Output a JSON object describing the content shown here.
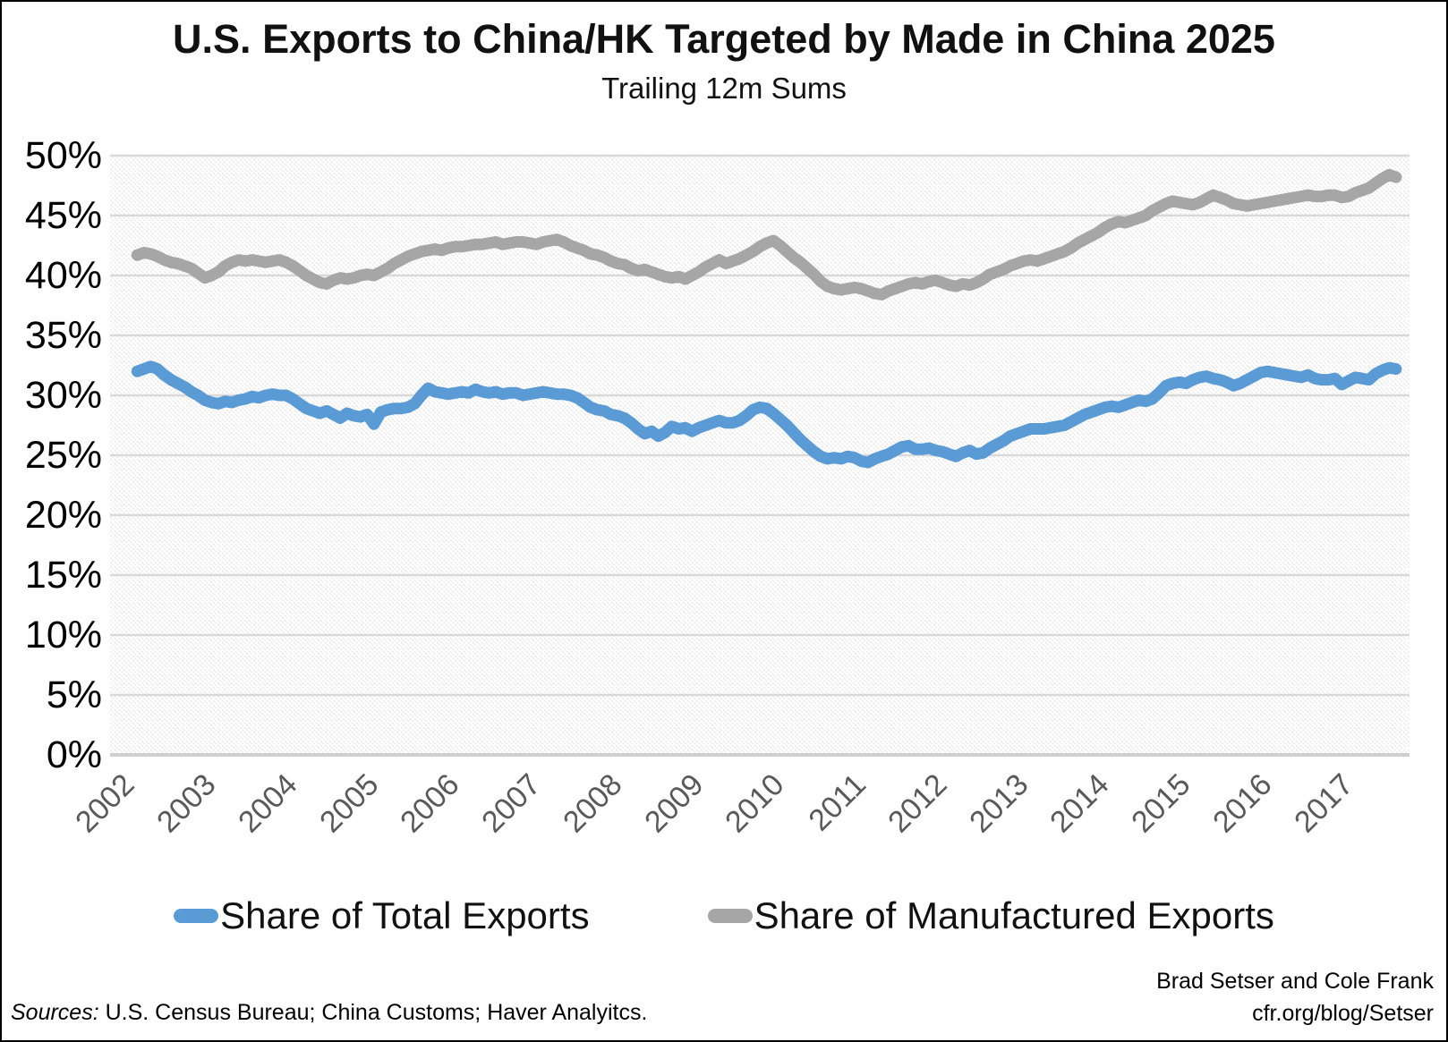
{
  "title": "U.S. Exports to China/HK Targeted by Made in China 2025",
  "subtitle": "Trailing 12m Sums",
  "legend": {
    "items": [
      {
        "label": "Share of Total Exports",
        "color": "#5b9bd5"
      },
      {
        "label": "Share of Manufactured Exports",
        "color": "#a6a6a6"
      }
    ]
  },
  "footer": {
    "sources_label": "Sources:",
    "sources_text": " U.S. Census Bureau; China Customs; Haver Analyitcs.",
    "credit_line1": "Brad Setser and Cole Frank",
    "credit_line2": "cfr.org/blog/Setser"
  },
  "chart_data": {
    "type": "line",
    "title": "U.S. Exports to China/HK Targeted by Made in China 2025",
    "subtitle": "Trailing 12m Sums",
    "grid": "horizontal",
    "legend_position": "bottom",
    "ylim": [
      0,
      50
    ],
    "y_tick_step": 5,
    "y_tick_labels": [
      "0%",
      "5%",
      "10%",
      "15%",
      "20%",
      "25%",
      "30%",
      "35%",
      "40%",
      "45%",
      "50%"
    ],
    "x_axis": {
      "start_year": 2002,
      "end_year_exclusive": 2018,
      "unit": "month"
    },
    "x_tick_labels": [
      "2002",
      "2003",
      "2004",
      "2005",
      "2006",
      "2007",
      "2008",
      "2009",
      "2010",
      "2011",
      "2012",
      "2013",
      "2014",
      "2015",
      "2016",
      "2017"
    ],
    "start_month": "2002-05",
    "end_month": "2017-11",
    "series": [
      {
        "name": "Share of Total Exports",
        "color": "#5b9bd5",
        "values": [
          32.0,
          32.2,
          32.4,
          32.2,
          31.7,
          31.3,
          31.0,
          30.7,
          30.3,
          30.0,
          29.6,
          29.4,
          29.3,
          29.5,
          29.4,
          29.6,
          29.7,
          29.9,
          29.8,
          30.0,
          30.1,
          30.0,
          30.0,
          29.7,
          29.3,
          28.9,
          28.7,
          28.5,
          28.7,
          28.4,
          28.1,
          28.5,
          28.3,
          28.2,
          28.4,
          27.6,
          28.6,
          28.8,
          28.9,
          28.9,
          29.0,
          29.3,
          30.0,
          30.6,
          30.3,
          30.2,
          30.1,
          30.2,
          30.3,
          30.2,
          30.5,
          30.3,
          30.2,
          30.3,
          30.1,
          30.2,
          30.2,
          30.0,
          30.1,
          30.2,
          30.3,
          30.2,
          30.1,
          30.1,
          30.0,
          29.8,
          29.4,
          29.0,
          28.8,
          28.7,
          28.4,
          28.3,
          28.1,
          27.7,
          27.2,
          26.8,
          27.0,
          26.6,
          26.9,
          27.4,
          27.2,
          27.3,
          27.0,
          27.3,
          27.5,
          27.7,
          27.9,
          27.7,
          27.7,
          27.9,
          28.3,
          28.8,
          29.0,
          28.9,
          28.5,
          28.0,
          27.5,
          26.9,
          26.3,
          25.8,
          25.3,
          24.9,
          24.7,
          24.8,
          24.7,
          24.9,
          24.8,
          24.5,
          24.4,
          24.7,
          24.9,
          25.1,
          25.4,
          25.7,
          25.8,
          25.5,
          25.5,
          25.6,
          25.4,
          25.3,
          25.1,
          24.9,
          25.2,
          25.4,
          25.1,
          25.2,
          25.6,
          25.9,
          26.2,
          26.6,
          26.8,
          27.0,
          27.2,
          27.2,
          27.2,
          27.3,
          27.4,
          27.5,
          27.8,
          28.1,
          28.4,
          28.6,
          28.8,
          29.0,
          29.1,
          29.0,
          29.2,
          29.4,
          29.6,
          29.5,
          29.7,
          30.2,
          30.8,
          31.0,
          31.1,
          31.0,
          31.3,
          31.5,
          31.6,
          31.4,
          31.3,
          31.1,
          30.8,
          31.0,
          31.3,
          31.6,
          31.9,
          32.0,
          31.9,
          31.8,
          31.7,
          31.6,
          31.5,
          31.7,
          31.4,
          31.3,
          31.3,
          31.4,
          30.9,
          31.2,
          31.5,
          31.4,
          31.3,
          31.8,
          32.1,
          32.3,
          32.2
        ]
      },
      {
        "name": "Share of Manufactured Exports",
        "color": "#a6a6a6",
        "values": [
          41.7,
          41.9,
          41.8,
          41.6,
          41.3,
          41.1,
          41.0,
          40.8,
          40.6,
          40.2,
          39.8,
          40.0,
          40.3,
          40.8,
          41.1,
          41.3,
          41.2,
          41.3,
          41.2,
          41.1,
          41.2,
          41.3,
          41.1,
          40.8,
          40.4,
          40.0,
          39.7,
          39.4,
          39.3,
          39.6,
          39.8,
          39.7,
          39.8,
          40.0,
          40.1,
          40.0,
          40.3,
          40.6,
          41.0,
          41.3,
          41.6,
          41.8,
          42.0,
          42.1,
          42.2,
          42.1,
          42.3,
          42.4,
          42.4,
          42.5,
          42.6,
          42.6,
          42.7,
          42.8,
          42.6,
          42.7,
          42.8,
          42.8,
          42.7,
          42.6,
          42.8,
          42.9,
          43.0,
          42.8,
          42.5,
          42.3,
          42.1,
          41.8,
          41.7,
          41.5,
          41.2,
          41.0,
          40.9,
          40.6,
          40.4,
          40.5,
          40.3,
          40.1,
          39.9,
          39.8,
          39.9,
          39.7,
          40.0,
          40.3,
          40.7,
          41.0,
          41.3,
          41.0,
          41.2,
          41.4,
          41.7,
          42.0,
          42.4,
          42.7,
          42.9,
          42.5,
          42.0,
          41.5,
          41.1,
          40.6,
          40.1,
          39.5,
          39.1,
          38.9,
          38.8,
          38.9,
          39.0,
          38.9,
          38.7,
          38.5,
          38.4,
          38.7,
          38.9,
          39.1,
          39.3,
          39.4,
          39.3,
          39.5,
          39.6,
          39.4,
          39.2,
          39.1,
          39.3,
          39.2,
          39.4,
          39.7,
          40.1,
          40.3,
          40.5,
          40.8,
          41.0,
          41.2,
          41.3,
          41.2,
          41.4,
          41.6,
          41.8,
          42.0,
          42.3,
          42.7,
          43.0,
          43.3,
          43.6,
          44.0,
          44.3,
          44.5,
          44.4,
          44.6,
          44.8,
          45.0,
          45.4,
          45.7,
          46.0,
          46.2,
          46.1,
          46.0,
          45.9,
          46.1,
          46.4,
          46.7,
          46.5,
          46.3,
          46.0,
          45.9,
          45.8,
          45.9,
          46.0,
          46.1,
          46.2,
          46.3,
          46.4,
          46.5,
          46.6,
          46.7,
          46.6,
          46.6,
          46.7,
          46.7,
          46.5,
          46.6,
          46.9,
          47.1,
          47.3,
          47.7,
          48.1,
          48.4,
          48.2
        ]
      }
    ],
    "style": {
      "plot_hatch_color": "#e2e2e2",
      "gridline_color": "#d9d9d9",
      "baseline_color": "#cfcfcf",
      "line_width": 13
    }
  }
}
